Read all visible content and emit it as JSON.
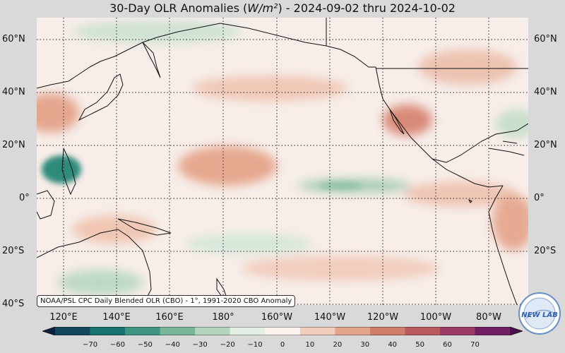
{
  "title": {
    "prefix": "30-Day OLR Anomalies (",
    "units": "W/m²",
    "suffix": ") - 2024-09-02 thru 2024-10-02"
  },
  "lat_labels": [
    "60°N",
    "40°N",
    "20°N",
    "0°",
    "20°S",
    "40°S"
  ],
  "lon_labels": [
    "120°E",
    "140°E",
    "160°E",
    "180°",
    "160°W",
    "140°W",
    "120°W",
    "100°W",
    "80°W"
  ],
  "credit": "NOAA/PSL CPC Daily Blended OLR (CBO) - 1°, 1991-2020 CBO Anomaly",
  "logo": {
    "text": "NEW LAB"
  },
  "colorbar": {
    "ticks": [
      "−70",
      "−60",
      "−50",
      "−40",
      "−30",
      "−20",
      "−10",
      "0",
      "10",
      "20",
      "30",
      "40",
      "50",
      "60",
      "70"
    ],
    "colors": [
      "#0d2142",
      "#12485e",
      "#17736f",
      "#3f9582",
      "#78b699",
      "#b4d5bd",
      "#e3eee4",
      "#fbf2ee",
      "#f1cdbb",
      "#e4a48c",
      "#d07d6a",
      "#b95a5f",
      "#9b3b66",
      "#722065",
      "#4a0f4d"
    ]
  },
  "map": {
    "lat_range": [
      -40,
      65
    ],
    "lon_range": [
      105,
      285
    ],
    "colors": {
      "ocean_neutral": "#f7ede9",
      "positive_weak": "#efcdbd",
      "positive_mod": "#e0a08a",
      "negative_weak": "#cfe2d4",
      "negative_mod": "#8fc1a8",
      "negative_strong": "#2d8a7a",
      "coast": "#111111",
      "grid": "#222222"
    }
  }
}
